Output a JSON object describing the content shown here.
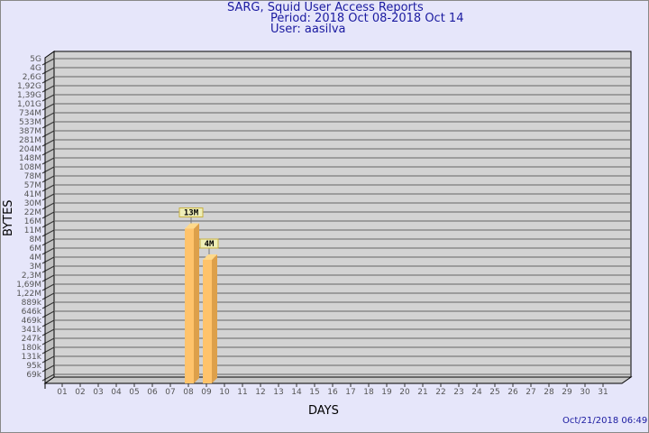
{
  "chart_data": {
    "type": "bar",
    "title": "SARG, Squid User Access Reports",
    "subtitle": [
      "Period: 2018 Oct 08-2018 Oct 14",
      "User: aasilva"
    ],
    "xlabel": "DAYS",
    "ylabel": "BYTES",
    "y_scale": "log",
    "grid": true,
    "y_ticks": [
      "5G",
      "4G",
      "2,6G",
      "1,92G",
      "1,39G",
      "1,01G",
      "734M",
      "533M",
      "387M",
      "281M",
      "204M",
      "148M",
      "108M",
      "78M",
      "57M",
      "41M",
      "30M",
      "22M",
      "16M",
      "11M",
      "8M",
      "6M",
      "4M",
      "3M",
      "2,3M",
      "1,69M",
      "1,22M",
      "889k",
      "646k",
      "469k",
      "341k",
      "247k",
      "180k",
      "131k",
      "95k",
      "69k"
    ],
    "categories": [
      "01",
      "02",
      "03",
      "04",
      "05",
      "06",
      "07",
      "08",
      "09",
      "10",
      "11",
      "12",
      "13",
      "14",
      "15",
      "16",
      "17",
      "18",
      "19",
      "20",
      "21",
      "22",
      "23",
      "24",
      "25",
      "26",
      "27",
      "28",
      "29",
      "30",
      "31"
    ],
    "bars": [
      {
        "x": "08",
        "value": 13000000,
        "label": "13M"
      },
      {
        "x": "09",
        "value": 4000000,
        "label": "4M"
      }
    ],
    "colors": {
      "bar": "#ffc36b",
      "bar_side": "#dda04a",
      "plot": "#d3d3d3",
      "title": "#1a1aa0",
      "background": "#e6e6fa"
    }
  },
  "timestamp": "Oct/21/2018 06:49"
}
